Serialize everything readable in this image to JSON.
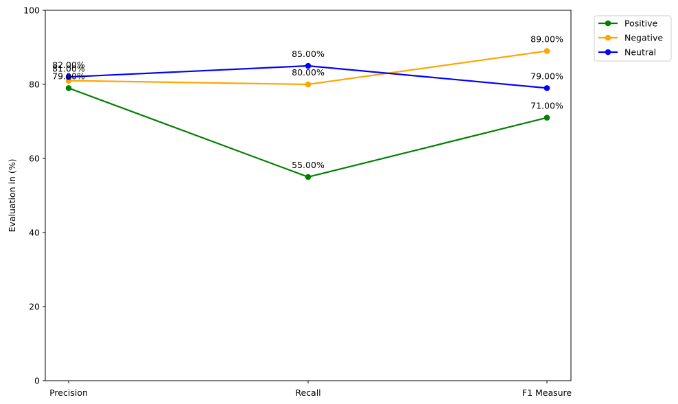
{
  "chart_data": {
    "type": "line",
    "categories": [
      "Precision",
      "Recall",
      "F1 Measure"
    ],
    "series": [
      {
        "name": "Positive",
        "color": "#008000",
        "values": [
          79,
          55,
          71
        ]
      },
      {
        "name": "Negative",
        "color": "#FFA500",
        "values": [
          81,
          80,
          89
        ]
      },
      {
        "name": "Neutral",
        "color": "#0000FF",
        "values": [
          82,
          85,
          79
        ]
      }
    ],
    "title": "",
    "xlabel": "",
    "ylabel": "Evaluation in (%)",
    "ylim": [
      0,
      100
    ],
    "yticks": [
      0,
      20,
      40,
      60,
      80,
      100
    ],
    "data_label_suffix": "%",
    "data_label_decimals": 2,
    "grid": false,
    "legend_position": "outside-top-right",
    "markers": true
  }
}
